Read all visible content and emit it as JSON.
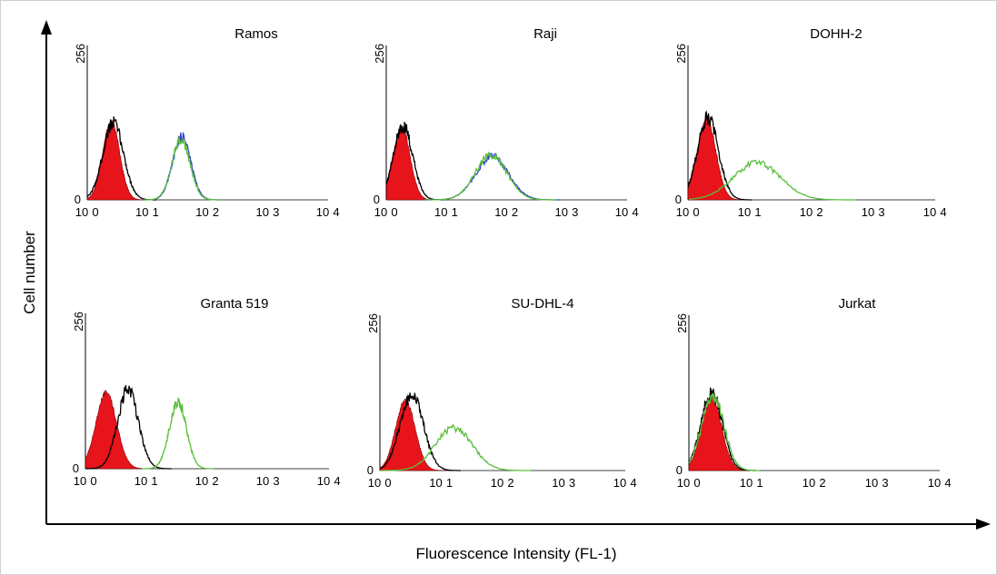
{
  "figure": {
    "ylabel": "Cell number",
    "xlabel": "Fluorescence Intensity (FL-1)",
    "colors": {
      "isotype_fill": "#e8141b",
      "black_line": "#000000",
      "green_line": "#58bf3b",
      "blue_line": "#2e3fc4"
    }
  },
  "chart_data": [
    {
      "type": "area",
      "title": "Ramos",
      "x_scale": "log",
      "xlim": [
        1,
        10000
      ],
      "ylim": [
        0,
        256
      ],
      "x_tick_labels": [
        "10",
        "0",
        "10",
        "1",
        "10",
        "2",
        "10",
        "3",
        "10",
        "4"
      ],
      "y_tick_labels": [
        "0",
        "256"
      ],
      "series": [
        {
          "color": "red",
          "style": "filled",
          "peak_x": 2.5,
          "peak_y": 130,
          "width_decades": 0.14
        },
        {
          "color": "black",
          "style": "line",
          "peak_x": 2.7,
          "peak_y": 128,
          "width_decades": 0.17
        },
        {
          "color": "green",
          "style": "line",
          "peak_x": 36,
          "peak_y": 100,
          "width_decades": 0.15
        },
        {
          "color": "blue",
          "style": "line",
          "peak_x": 37,
          "peak_y": 104,
          "width_decades": 0.15
        }
      ]
    },
    {
      "type": "area",
      "title": "Raji",
      "x_scale": "log",
      "xlim": [
        1,
        10000
      ],
      "ylim": [
        0,
        256
      ],
      "x_tick_labels": [
        "10",
        "0",
        "10",
        "1",
        "10",
        "2",
        "10",
        "3",
        "10",
        "4"
      ],
      "y_tick_labels": [
        "0",
        "256"
      ],
      "series": [
        {
          "color": "red",
          "style": "filled",
          "peak_x": 1.8,
          "peak_y": 120,
          "width_decades": 0.14
        },
        {
          "color": "black",
          "style": "line",
          "peak_x": 1.9,
          "peak_y": 122,
          "width_decades": 0.16
        },
        {
          "color": "green",
          "style": "line",
          "peak_x": 55,
          "peak_y": 75,
          "width_decades": 0.26
        },
        {
          "color": "blue",
          "style": "line",
          "peak_x": 57,
          "peak_y": 72,
          "width_decades": 0.27
        }
      ]
    },
    {
      "type": "area",
      "title": "DOHH-2",
      "x_scale": "log",
      "xlim": [
        1,
        10000
      ],
      "ylim": [
        0,
        256
      ],
      "x_tick_labels": [
        "10",
        "0",
        "10",
        "1",
        "10",
        "2",
        "10",
        "3",
        "10",
        "4"
      ],
      "y_tick_labels": [
        "0",
        "256"
      ],
      "series": [
        {
          "color": "red",
          "style": "filled",
          "peak_x": 2.0,
          "peak_y": 135,
          "width_decades": 0.15
        },
        {
          "color": "black",
          "style": "line",
          "peak_x": 2.1,
          "peak_y": 136,
          "width_decades": 0.17
        },
        {
          "color": "green",
          "style": "line",
          "peak_x": 13,
          "peak_y": 62,
          "width_decades": 0.38
        }
      ]
    },
    {
      "type": "area",
      "title": "Granta 519",
      "x_scale": "log",
      "xlim": [
        1,
        10000
      ],
      "ylim": [
        0,
        256
      ],
      "x_tick_labels": [
        "10",
        "0",
        "10",
        "1",
        "10",
        "2",
        "10",
        "3",
        "10",
        "4"
      ],
      "y_tick_labels": [
        "0",
        "256"
      ],
      "series": [
        {
          "color": "red",
          "style": "filled",
          "peak_x": 2.2,
          "peak_y": 125,
          "width_decades": 0.17
        },
        {
          "color": "black",
          "style": "line",
          "peak_x": 5.0,
          "peak_y": 130,
          "width_decades": 0.17
        },
        {
          "color": "green",
          "style": "line",
          "peak_x": 33,
          "peak_y": 110,
          "width_decades": 0.14
        }
      ]
    },
    {
      "type": "area",
      "title": "SU-DHL-4",
      "x_scale": "log",
      "xlim": [
        1,
        10000
      ],
      "ylim": [
        0,
        256
      ],
      "x_tick_labels": [
        "10",
        "0",
        "10",
        "1",
        "10",
        "2",
        "10",
        "3",
        "10",
        "4"
      ],
      "y_tick_labels": [
        "0",
        "256"
      ],
      "series": [
        {
          "color": "red",
          "style": "filled",
          "peak_x": 2.6,
          "peak_y": 115,
          "width_decades": 0.16
        },
        {
          "color": "black",
          "style": "line",
          "peak_x": 3.3,
          "peak_y": 125,
          "width_decades": 0.19
        },
        {
          "color": "green",
          "style": "line",
          "peak_x": 16,
          "peak_y": 70,
          "width_decades": 0.3
        }
      ]
    },
    {
      "type": "area",
      "title": "Jurkat",
      "x_scale": "log",
      "xlim": [
        1,
        10000
      ],
      "ylim": [
        0,
        256
      ],
      "x_tick_labels": [
        "10",
        "0",
        "10",
        "1",
        "10",
        "2",
        "10",
        "3",
        "10",
        "4"
      ],
      "y_tick_labels": [
        "0",
        "256"
      ],
      "series": [
        {
          "color": "red",
          "style": "filled",
          "peak_x": 2.3,
          "peak_y": 118,
          "width_decades": 0.16
        },
        {
          "color": "black",
          "style": "line",
          "peak_x": 2.3,
          "peak_y": 128,
          "width_decades": 0.17
        },
        {
          "color": "green",
          "style": "line",
          "peak_x": 2.4,
          "peak_y": 122,
          "width_decades": 0.18
        }
      ]
    }
  ]
}
